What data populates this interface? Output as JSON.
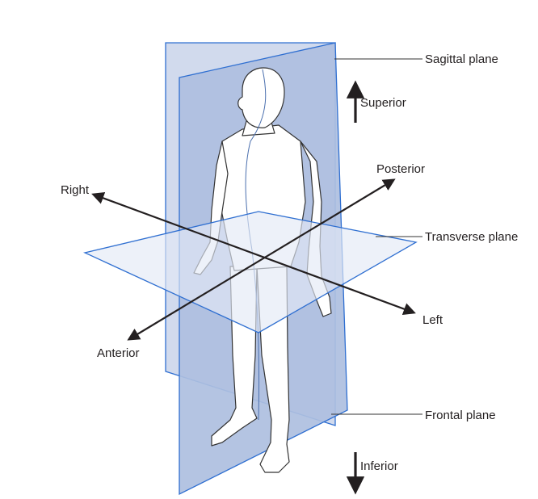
{
  "labels": {
    "sagittal_plane": "Sagittal plane",
    "superior": "Superior",
    "posterior": "Posterior",
    "right": "Right",
    "transverse_plane": "Transverse plane",
    "left": "Left",
    "anterior": "Anterior",
    "frontal_plane": "Frontal plane",
    "inferior": "Inferior"
  },
  "colors": {
    "plane_edge": "#2f6fd1",
    "sagittal_fill": "#c9d4ea",
    "frontal_fill": "#b3c2e1",
    "transverse_fill": "#e3e9f6",
    "body_fill": "#ffffff",
    "body_outline": "#333333",
    "leader_line": "#333333",
    "arrow": "#231f20"
  }
}
